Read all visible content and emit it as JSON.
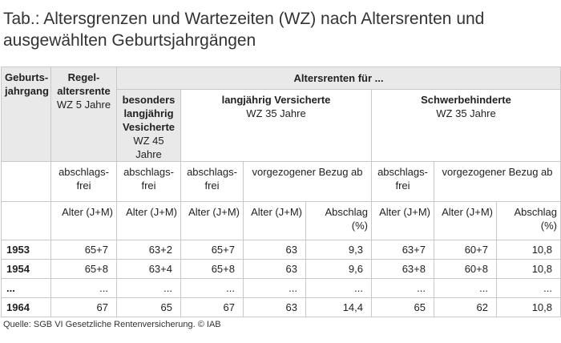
{
  "title": "Tab.: Altersgrenzen und Wartezeiten (WZ) nach Altersrenten und ausgewählten Geburtsjahrgängen",
  "header": {
    "geburtsjahrgang": "Geburts-jahrgang",
    "regel_bold": "Regel-altersrente",
    "regel_sub": "WZ 5 Jahre",
    "altersrenten_fuer": "Altersrenten für ...",
    "besonders_bold": "besonders langjährig Vesicherte",
    "besonders_sub": "WZ 45 Jahre",
    "langjaehrig_bold": "langjährig Versicherte",
    "langjaehrig_sub": "WZ 35 Jahre",
    "schwer_bold": "Schwerbehinderte",
    "schwer_sub": "WZ 35 Jahre",
    "abschlagsfrei": "abschlags-frei",
    "vorgezogen": "vorgezogener Bezug ab",
    "alter": "Alter (J+M)",
    "abschlag": "Abschlag (%)"
  },
  "rows": [
    {
      "year": "1953",
      "regel": "65+7",
      "besonders": "63+2",
      "lang_frei": "65+7",
      "lang_alter": "63",
      "lang_abschlag": "9,3",
      "schwer_frei": "63+7",
      "schwer_alter": "60+7",
      "schwer_abschlag": "10,8"
    },
    {
      "year": "1954",
      "regel": "65+8",
      "besonders": "63+4",
      "lang_frei": "65+8",
      "lang_alter": "63",
      "lang_abschlag": "9,6",
      "schwer_frei": "63+8",
      "schwer_alter": "60+8",
      "schwer_abschlag": "10,8"
    },
    {
      "year": "...",
      "regel": "...",
      "besonders": "...",
      "lang_frei": "...",
      "lang_alter": "...",
      "lang_abschlag": "...",
      "schwer_frei": "...",
      "schwer_alter": "...",
      "schwer_abschlag": "..."
    },
    {
      "year": "1964",
      "regel": "67",
      "besonders": "65",
      "lang_frei": "67",
      "lang_alter": "63",
      "lang_abschlag": "14,4",
      "schwer_frei": "65",
      "schwer_alter": "62",
      "schwer_abschlag": "10,8"
    }
  ],
  "source": "Quelle: SGB VI Gesetzliche Rentenversicherung.  © IAB"
}
